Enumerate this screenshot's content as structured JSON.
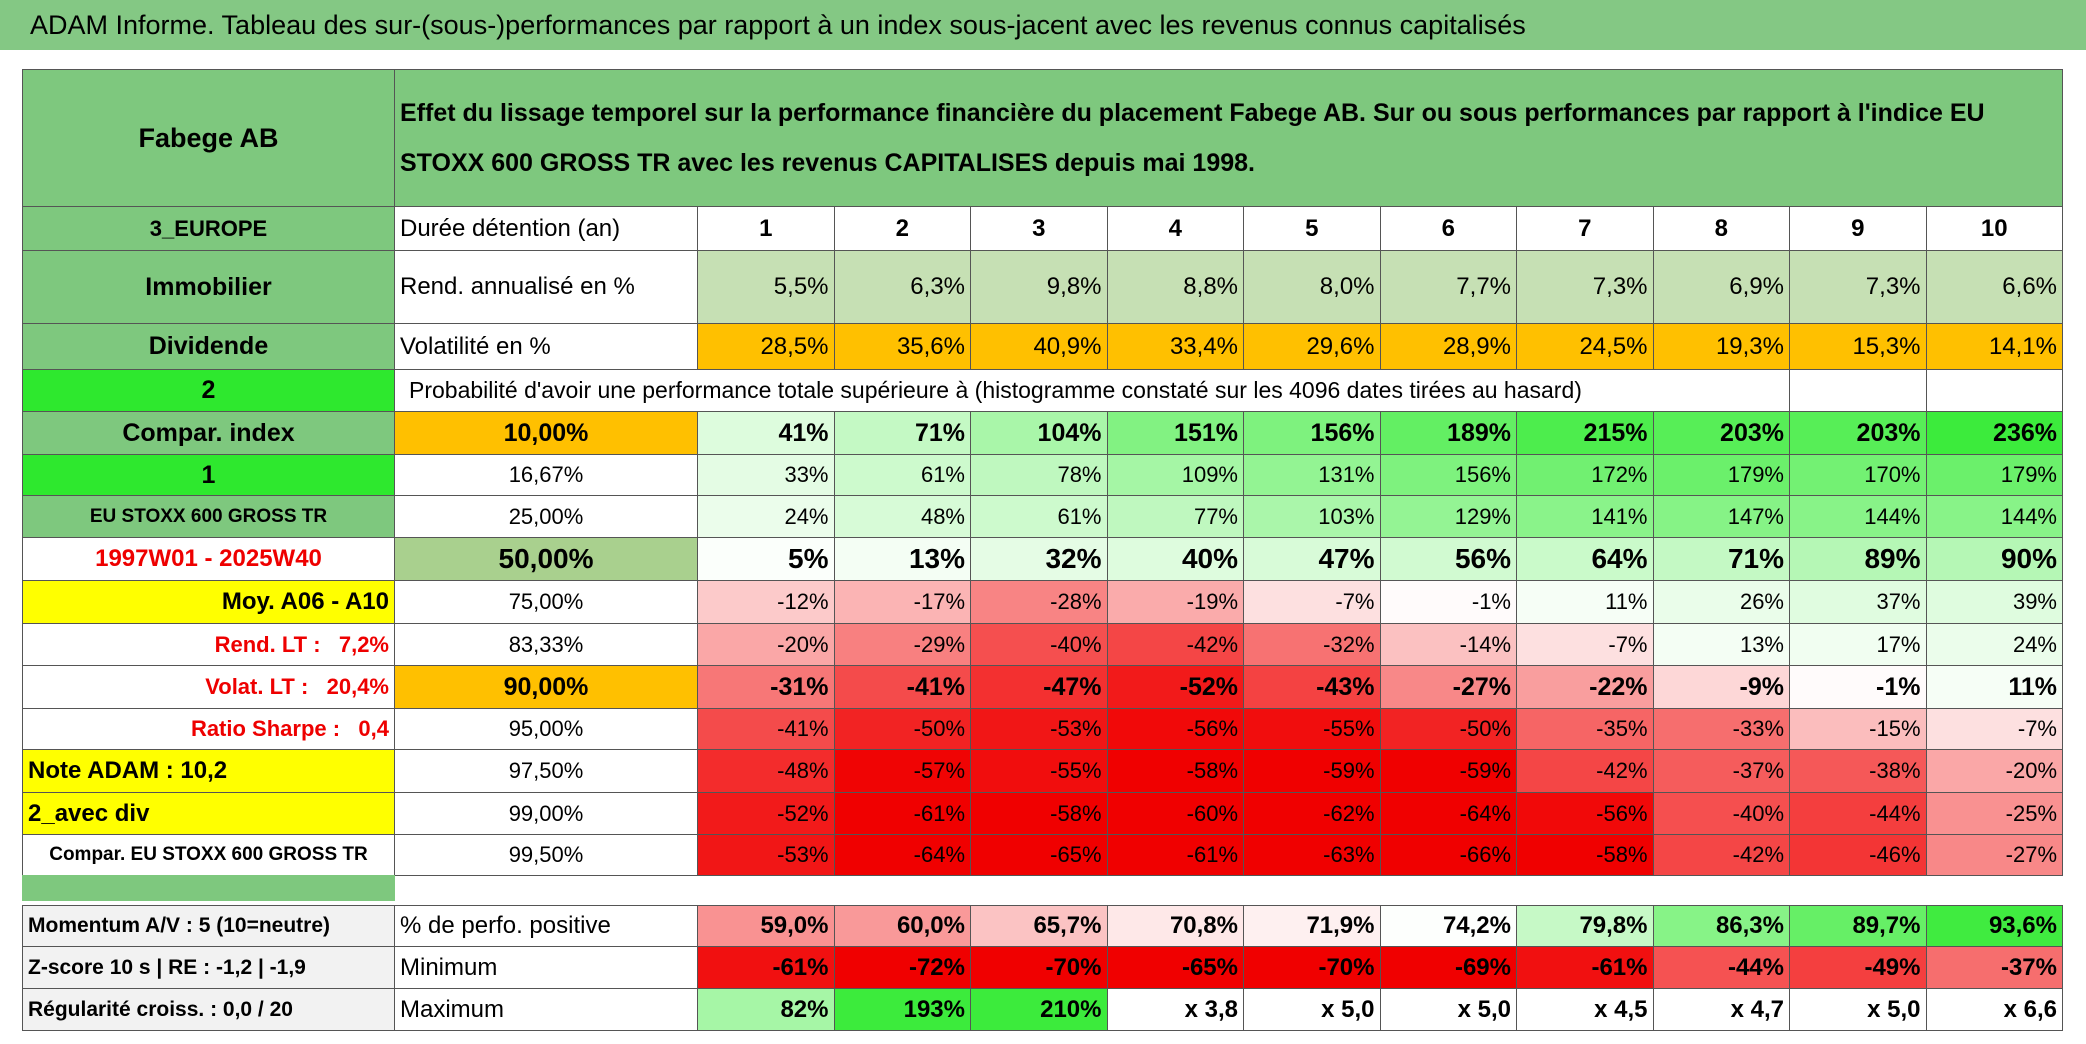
{
  "title": "ADAM Informe. Tableau des sur-(sous-)performances par rapport à un index sous-jacent avec les revenus connus capitalisés",
  "header": {
    "name": "Fabege AB",
    "description": "Effet du lissage temporel sur la performance financière du placement Fabege AB. Sur ou sous performances par rapport à l'indice EU STOXX 600 GROSS TR avec les revenus CAPITALISES depuis mai 1998."
  },
  "holding": {
    "label": "Durée détention (an)",
    "years": [
      "1",
      "2",
      "3",
      "4",
      "5",
      "6",
      "7",
      "8",
      "9",
      "10"
    ]
  },
  "left_labels": [
    "3_EUROPE",
    "Immobilier",
    "Dividende",
    "2",
    "Compar. index",
    "1",
    "EU STOXX 600 GROSS TR",
    "1997W01 - 2025W40",
    "Moy. A06 - A10",
    "Rend. LT :   7,2%",
    "Volat. LT :   20,4%",
    "Ratio Sharpe :   0,4",
    "Note ADAM : 10,2",
    "2_avec div",
    "Compar. EU STOXX 600 GROSS TR"
  ],
  "return": {
    "label": "Rend. annualisé en %",
    "values": [
      "5,5%",
      "6,3%",
      "9,8%",
      "8,8%",
      "8,0%",
      "7,7%",
      "7,3%",
      "6,9%",
      "7,3%",
      "6,6%"
    ]
  },
  "volatility": {
    "label": "Volatilité en %",
    "values": [
      "28,5%",
      "35,6%",
      "40,9%",
      "33,4%",
      "29,6%",
      "28,9%",
      "24,5%",
      "19,3%",
      "15,3%",
      "14,1%"
    ]
  },
  "probability_caption": "Probabilité d'avoir une performance totale supérieure à (histogramme constaté sur les 4096 dates tirées au hasard)",
  "percentiles": [
    {
      "level": "10,00%",
      "values": [
        "41%",
        "71%",
        "104%",
        "151%",
        "156%",
        "189%",
        "215%",
        "203%",
        "203%",
        "236%"
      ]
    },
    {
      "level": "16,67%",
      "values": [
        "33%",
        "61%",
        "78%",
        "109%",
        "131%",
        "156%",
        "172%",
        "179%",
        "170%",
        "179%"
      ]
    },
    {
      "level": "25,00%",
      "values": [
        "24%",
        "48%",
        "61%",
        "77%",
        "103%",
        "129%",
        "141%",
        "147%",
        "144%",
        "144%"
      ]
    },
    {
      "level": "50,00%",
      "values": [
        "5%",
        "13%",
        "32%",
        "40%",
        "47%",
        "56%",
        "64%",
        "71%",
        "89%",
        "90%"
      ]
    },
    {
      "level": "75,00%",
      "values": [
        "-12%",
        "-17%",
        "-28%",
        "-19%",
        "-7%",
        "-1%",
        "11%",
        "26%",
        "37%",
        "39%"
      ]
    },
    {
      "level": "83,33%",
      "values": [
        "-20%",
        "-29%",
        "-40%",
        "-42%",
        "-32%",
        "-14%",
        "-7%",
        "13%",
        "17%",
        "24%"
      ]
    },
    {
      "level": "90,00%",
      "values": [
        "-31%",
        "-41%",
        "-47%",
        "-52%",
        "-43%",
        "-27%",
        "-22%",
        "-9%",
        "-1%",
        "11%"
      ]
    },
    {
      "level": "95,00%",
      "values": [
        "-41%",
        "-50%",
        "-53%",
        "-56%",
        "-55%",
        "-50%",
        "-35%",
        "-33%",
        "-15%",
        "-7%"
      ]
    },
    {
      "level": "97,50%",
      "values": [
        "-48%",
        "-57%",
        "-55%",
        "-58%",
        "-59%",
        "-59%",
        "-42%",
        "-37%",
        "-38%",
        "-20%"
      ]
    },
    {
      "level": "99,00%",
      "values": [
        "-52%",
        "-61%",
        "-58%",
        "-60%",
        "-62%",
        "-64%",
        "-56%",
        "-40%",
        "-44%",
        "-25%"
      ]
    },
    {
      "level": "99,50%",
      "values": [
        "-53%",
        "-64%",
        "-65%",
        "-61%",
        "-63%",
        "-66%",
        "-58%",
        "-42%",
        "-46%",
        "-27%"
      ]
    }
  ],
  "footer_labels": [
    "Momentum A/V : 5 (10=neutre)",
    "Z-score 10 s | RE : -1,2 | -1,9",
    "Régularité croiss. : 0,0 / 20"
  ],
  "stats": [
    {
      "label": "% de perfo. positive",
      "values": [
        "59,0%",
        "60,0%",
        "65,7%",
        "70,8%",
        "71,9%",
        "74,2%",
        "79,8%",
        "86,3%",
        "89,7%",
        "93,6%"
      ]
    },
    {
      "label": "Minimum",
      "values": [
        "-61%",
        "-72%",
        "-70%",
        "-65%",
        "-70%",
        "-69%",
        "-61%",
        "-44%",
        "-49%",
        "-37%"
      ]
    },
    {
      "label": "Maximum",
      "values": [
        "82%",
        "193%",
        "210%",
        "x 3,8",
        "x 5,0",
        "x 5,0",
        "x 4,5",
        "x 4,7",
        "x 5,0",
        "x 6,6"
      ]
    }
  ]
}
